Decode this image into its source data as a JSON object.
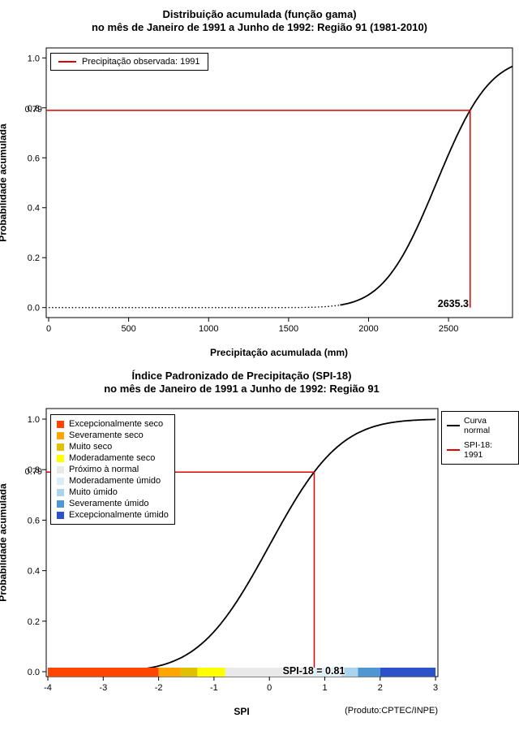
{
  "page": {
    "background": "#FFFFFF"
  },
  "chart_data": [
    {
      "type": "line",
      "id": "gamma-cdf",
      "title_line1": "Distribuição acumulada (função gama)",
      "title_line2": "no mês de Janeiro de 1991 a Junho de 1992: Região 91 (1981-2010)",
      "xlabel": "Precipitação acumulada (mm)",
      "ylabel": "Probabilidade acumulada",
      "xlim": [
        0,
        2900
      ],
      "ylim": [
        0,
        1
      ],
      "xticks": [
        0,
        500,
        1000,
        1500,
        2000,
        2500
      ],
      "xtick_labels": [
        "0",
        "500",
        "1000",
        "1500",
        "2000",
        "2500"
      ],
      "yticks": [
        0,
        0.2,
        0.4,
        0.6,
        0.8,
        1
      ],
      "ytick_labels": [
        "0.0",
        "0.2",
        "0.4",
        "0.6",
        "0.8",
        "1.0"
      ],
      "curve": {
        "name": "Distribuição acumulada (função gama) 1981-2010",
        "color": "#000000",
        "approx": "normal",
        "mean": 2425,
        "sd": 260
      },
      "marker": {
        "x": 2635.3,
        "prob": 0.79,
        "x_label": "2635.3",
        "prob_label": "0.79",
        "color": "#E00000"
      },
      "legend": [
        {
          "label": "Precipitação observada: 1991",
          "color": "#E00000"
        }
      ]
    },
    {
      "type": "line",
      "id": "spi-cdf",
      "title_line1": "Índice Padronizado de Precipitação (SPI-18)",
      "title_line2": "no mês de Janeiro de 1991 a Junho de 1992: Região 91",
      "xlabel": "SPI",
      "ylabel": "Probabilidade acumulada",
      "footnote": "(Produto:CPTEC/INPE)",
      "xlim": [
        -4,
        3
      ],
      "ylim": [
        0,
        1
      ],
      "xticks": [
        -4,
        -3,
        -2,
        -1,
        0,
        1,
        2,
        3
      ],
      "xtick_labels": [
        "-4",
        "-3",
        "-2",
        "-1",
        "0",
        "1",
        "2",
        "3"
      ],
      "yticks": [
        0,
        0.2,
        0.4,
        0.6,
        0.8,
        1
      ],
      "ytick_labels": [
        "0.0",
        "0.2",
        "0.4",
        "0.6",
        "0.8",
        "1.0"
      ],
      "curve": {
        "name": "Curva normal",
        "color": "#000000",
        "approx": "normal",
        "mean": 0,
        "sd": 1
      },
      "marker": {
        "x": 0.81,
        "prob": 0.79,
        "prob_label": "0.79",
        "bar_label": "SPI-18 = 0.81",
        "color": "#E00000"
      },
      "legend_right": [
        {
          "label": "Curva\nnormal",
          "color": "#000000"
        },
        {
          "label": "SPI-18: 1991",
          "color": "#E00000"
        }
      ],
      "categories": [
        {
          "label": "Excepcionalmente seco",
          "color": "#FF4500",
          "from": -4,
          "to": -2
        },
        {
          "label": "Severamente seco",
          "color": "#FFA500",
          "from": -2,
          "to": -1.6
        },
        {
          "label": "Muito seco",
          "color": "#E0C000",
          "from": -1.6,
          "to": -1.3
        },
        {
          "label": "Moderadamente seco",
          "color": "#FFFF00",
          "from": -1.3,
          "to": -0.8
        },
        {
          "label": "Próximo à normal",
          "color": "#E9E9E9",
          "from": -0.8,
          "to": 0.8
        },
        {
          "label": "Moderadamente úmido",
          "color": "#DAEEF7",
          "from": 0.8,
          "to": 1.3
        },
        {
          "label": "Muito úmido",
          "color": "#A8D4EE",
          "from": 1.3,
          "to": 1.6
        },
        {
          "label": "Severamente úmido",
          "color": "#4F97D3",
          "from": 1.6,
          "to": 2
        },
        {
          "label": "Excepcionalmente úmido",
          "color": "#2B52C8",
          "from": 2,
          "to": 3
        }
      ]
    }
  ]
}
